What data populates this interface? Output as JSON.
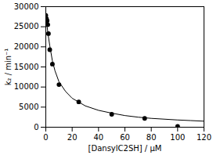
{
  "chart_data": {
    "type": "scatter",
    "x_label": "[DansylC2SH] / μM",
    "y_label": "k₂ / min⁻¹",
    "xlim": [
      0,
      120
    ],
    "xticks": [
      0,
      20,
      40,
      60,
      80,
      100,
      120
    ],
    "ylim": [
      0,
      30000
    ],
    "yticks": [
      0,
      5000,
      10000,
      15000,
      20000,
      25000,
      30000
    ],
    "grid": false,
    "series": [
      {
        "type": "scatter",
        "color": "#000000",
        "marker": "circle",
        "x": [
          0,
          0.5,
          1,
          1.5,
          2,
          3,
          5,
          10,
          25,
          50,
          75,
          100
        ],
        "values": [
          27800,
          27000,
          26500,
          25500,
          23300,
          19300,
          15700,
          10600,
          6300,
          3200,
          2200,
          200
        ]
      },
      {
        "type": "line",
        "color": "#000000",
        "line_style": "solid",
        "x": [
          0,
          1,
          2,
          3,
          5,
          7,
          10,
          15,
          20,
          30,
          40,
          50,
          60,
          70,
          80,
          90,
          100,
          110,
          120
        ],
        "values": [
          28000,
          25000,
          22500,
          20300,
          16500,
          14000,
          11300,
          8900,
          7200,
          5300,
          4200,
          3500,
          2900,
          2500,
          2200,
          2000,
          1800,
          1650,
          1500
        ]
      }
    ]
  }
}
